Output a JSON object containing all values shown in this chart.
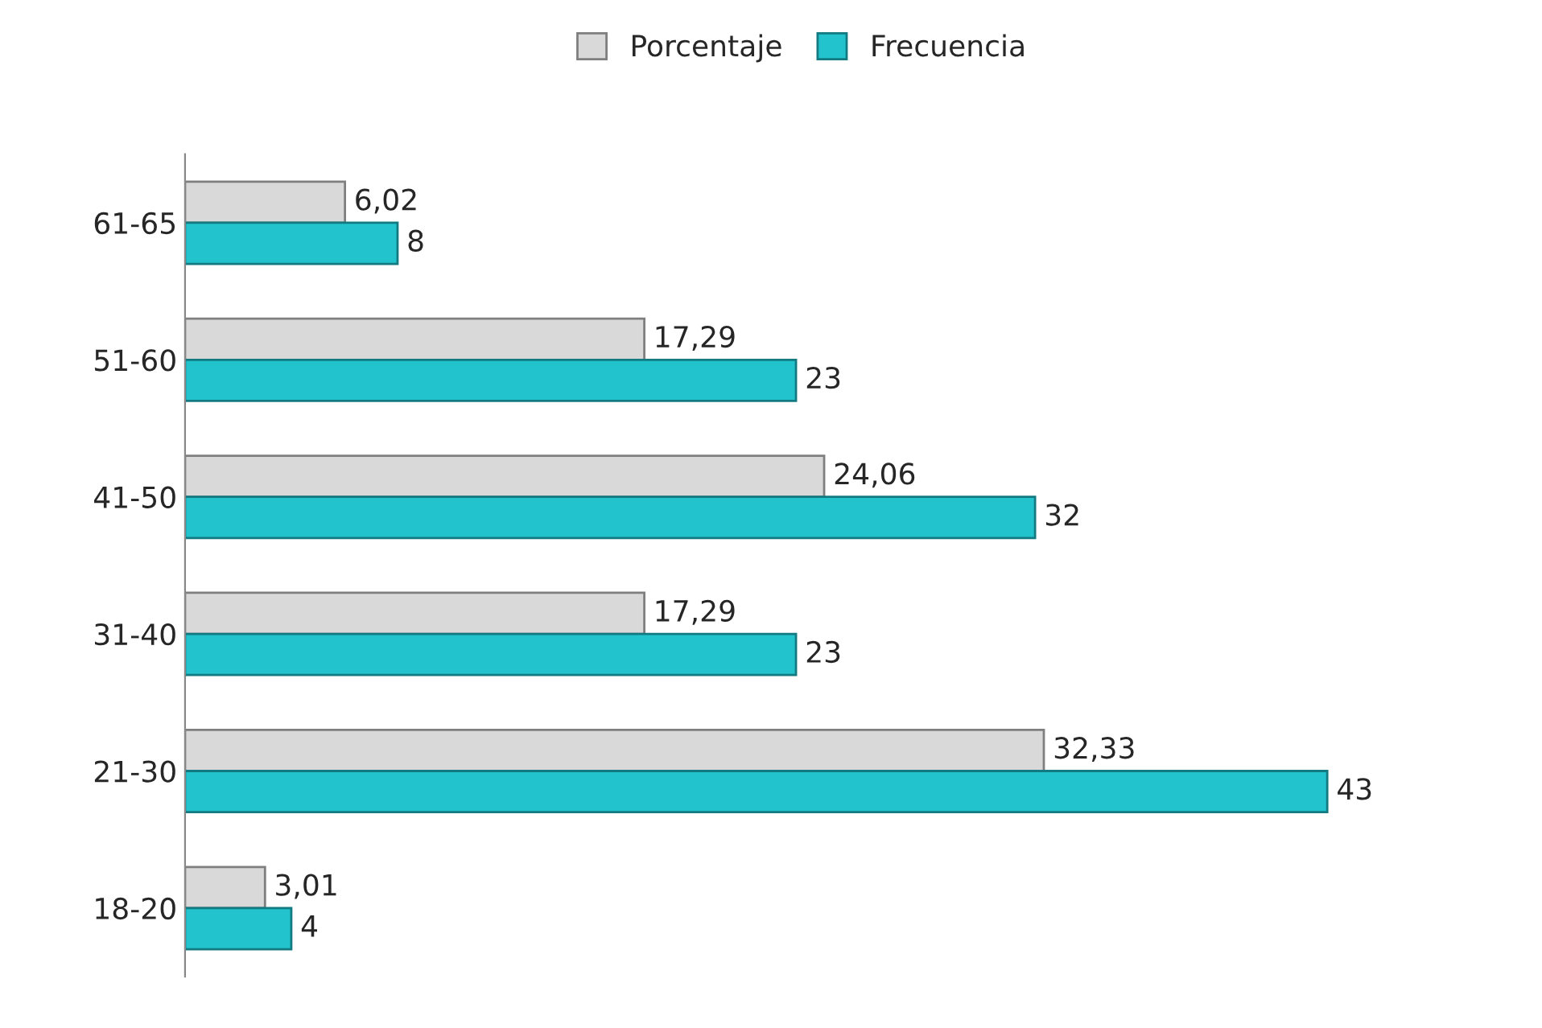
{
  "chart_data": {
    "type": "bar",
    "orientation": "horizontal",
    "legend": "top",
    "grid": false,
    "categories": [
      "61-65",
      "51-60",
      "41-50",
      "31-40",
      "21-30",
      "18-20"
    ],
    "series": [
      {
        "name": "Porcentaje",
        "color": "#d9d9d9",
        "values": [
          6.02,
          17.29,
          24.06,
          17.29,
          32.33,
          3.01
        ],
        "value_labels": [
          "6,02",
          "17,29",
          "24,06",
          "17,29",
          "32,33",
          "3,01"
        ]
      },
      {
        "name": "Frecuencia",
        "color": "#22c3cc",
        "values": [
          8,
          23,
          32,
          23,
          43,
          4
        ],
        "value_labels": [
          "8",
          "23",
          "32",
          "23",
          "43",
          "4"
        ]
      }
    ]
  }
}
